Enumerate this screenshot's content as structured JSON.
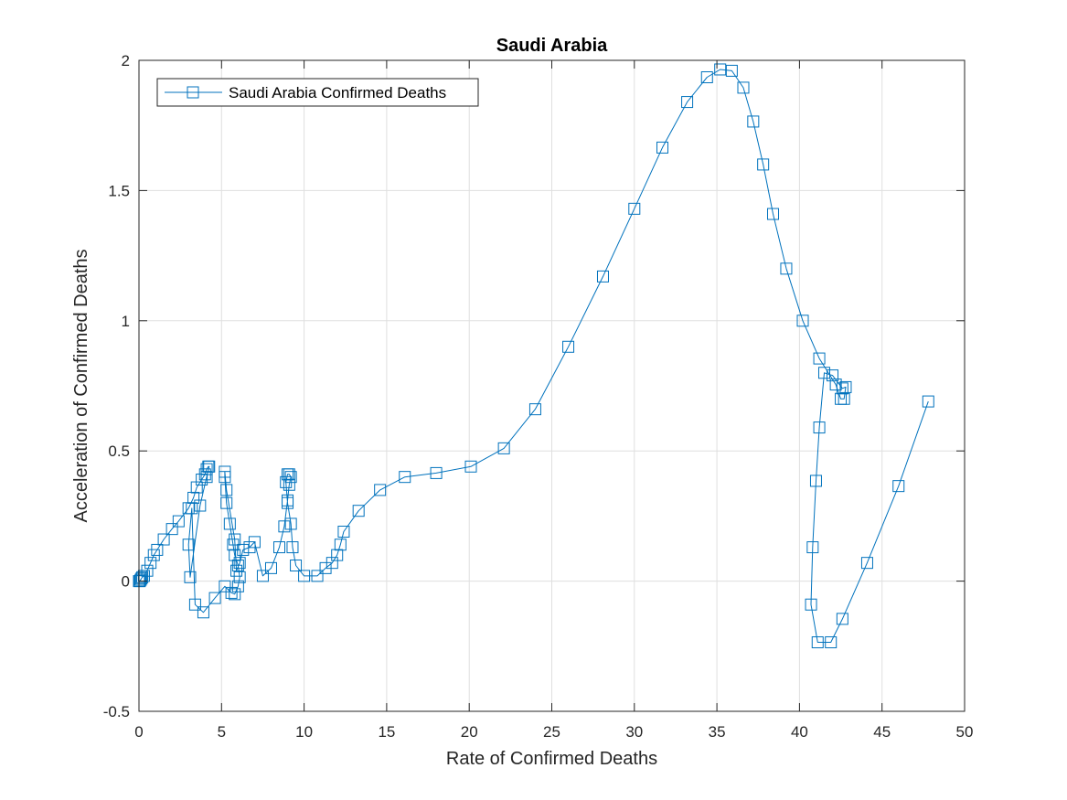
{
  "chart_data": {
    "type": "line",
    "title": "Saudi Arabia",
    "xlabel": "Rate of Confirmed Deaths",
    "ylabel": "Acceleration of Confirmed Deaths",
    "xlim": [
      0,
      50
    ],
    "ylim": [
      -0.5,
      2
    ],
    "xticks": [
      "0",
      "5",
      "10",
      "15",
      "20",
      "25",
      "30",
      "35",
      "40",
      "45",
      "50"
    ],
    "yticks": [
      "-0.5",
      "0",
      "0.5",
      "1",
      "1.5",
      "2"
    ],
    "grid": true,
    "legend_position": "top-left",
    "series": [
      {
        "name": "Saudi Arabia Confirmed Deaths",
        "color": "#0072BD",
        "marker": "square",
        "x": [
          0,
          0.05,
          0.1,
          0.15,
          0.2,
          0.3,
          0.5,
          0.7,
          0.9,
          1.1,
          1.5,
          2.0,
          2.4,
          3.0,
          3.3,
          3.5,
          3.8,
          4.0,
          4.1,
          4.2,
          4.25,
          4.1,
          3.7,
          3.1,
          3.0,
          3.2,
          3.4,
          3.9,
          4.6,
          5.2,
          5.6,
          5.8,
          6.0,
          6.1,
          6.0,
          5.8,
          5.7,
          5.5,
          5.3,
          5.2,
          5.2,
          5.3,
          5.8,
          5.9,
          6.1,
          6.3,
          6.7,
          7.0,
          7.5,
          8.0,
          8.5,
          8.8,
          9.0,
          9.1,
          9.2,
          9.1,
          9.0,
          8.9,
          9.0,
          9.2,
          9.3,
          9.5,
          10.0,
          10.8,
          11.3,
          11.7,
          12.0,
          12.2,
          12.4,
          13.3,
          14.6,
          16.1,
          18.0,
          20.1,
          22.1,
          24.0,
          26.0,
          28.1,
          30.0,
          31.7,
          33.2,
          34.4,
          35.2,
          35.9,
          36.6,
          37.2,
          37.8,
          38.4,
          39.2,
          40.2,
          41.2,
          42.2,
          42.5,
          42.7,
          42.8,
          42.6,
          42.0,
          41.5,
          41.2,
          41.0,
          40.8,
          40.7,
          41.1,
          41.9,
          42.6,
          44.1,
          46.0,
          47.8
        ],
        "y": [
          0,
          0,
          0.005,
          0.01,
          0.015,
          0.02,
          0.04,
          0.07,
          0.1,
          0.12,
          0.16,
          0.2,
          0.23,
          0.28,
          0.32,
          0.36,
          0.39,
          0.41,
          0.43,
          0.44,
          0.44,
          0.4,
          0.29,
          0.015,
          0.14,
          0.28,
          -0.09,
          -0.12,
          -0.065,
          -0.02,
          -0.045,
          -0.05,
          -0.02,
          0.015,
          0.06,
          0.1,
          0.14,
          0.22,
          0.3,
          0.4,
          0.42,
          0.35,
          0.16,
          0.04,
          0.07,
          0.12,
          0.13,
          0.15,
          0.02,
          0.05,
          0.13,
          0.21,
          0.31,
          0.37,
          0.4,
          0.41,
          0.41,
          0.38,
          0.3,
          0.22,
          0.13,
          0.06,
          0.02,
          0.02,
          0.05,
          0.07,
          0.1,
          0.14,
          0.19,
          0.27,
          0.35,
          0.4,
          0.415,
          0.44,
          0.51,
          0.66,
          0.9,
          1.17,
          1.43,
          1.665,
          1.84,
          1.935,
          1.965,
          1.96,
          1.895,
          1.765,
          1.6,
          1.41,
          1.2,
          1.0,
          0.855,
          0.755,
          0.7,
          0.7,
          0.745,
          0.74,
          0.79,
          0.8,
          0.59,
          0.385,
          0.13,
          -0.09,
          -0.235,
          -0.235,
          -0.145,
          0.07,
          0.365,
          0.69
        ]
      }
    ]
  }
}
